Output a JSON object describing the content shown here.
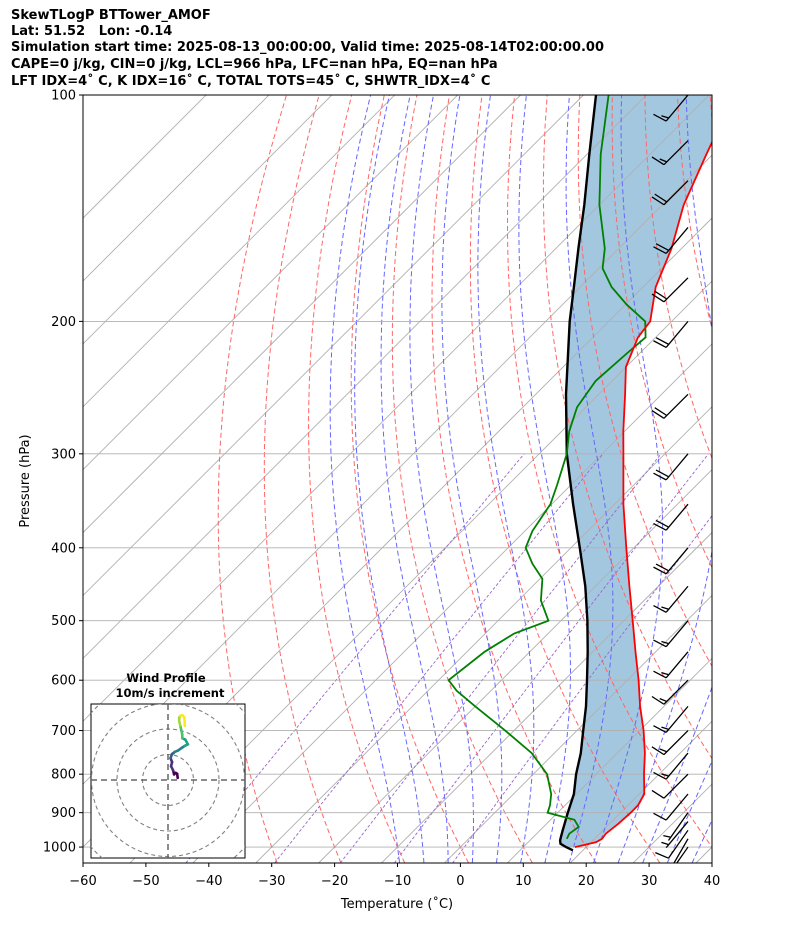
{
  "header": {
    "line1": "SkewTLogP BTTower_AMOF",
    "line2": "Lat: 51.52   Lon: -0.14",
    "line3": "Simulation start time: 2025-08-13_00:00:00, Valid time: 2025-08-14T02:00:00.00",
    "line4": "CAPE=0 j/kg, CIN=0 j/kg, LCL=966 hPa, LFC=nan hPa, EQ=nan hPa",
    "line5": "LFT IDX=4˚ C, K IDX=16˚ C, TOTAL TOTS=45˚ C, SHWTR_IDX=4˚ C"
  },
  "chart_data": {
    "type": "skewt",
    "xlabel": "Temperature (˚C)",
    "ylabel": "Pressure (hPa)",
    "xlim": [
      -60,
      40
    ],
    "ylim": [
      1050,
      100
    ],
    "x_ticks": [
      -60,
      -50,
      -40,
      -30,
      -20,
      -10,
      0,
      10,
      20,
      30,
      40
    ],
    "x_tick_labels": [
      "−60",
      "−50",
      "−40",
      "−30",
      "−20",
      "−10",
      "0",
      "10",
      "20",
      "30",
      "40"
    ],
    "y_ticks": [
      1000,
      900,
      800,
      700,
      600,
      500,
      400,
      300,
      200,
      100
    ],
    "y_tick_labels": [
      "1000",
      "900",
      "800",
      "700",
      "600",
      "500",
      "400",
      "300",
      "200",
      "100"
    ],
    "colors": {
      "temperature": "#ff0000",
      "dewpoint": "#008000",
      "parcel": "#000000",
      "cape_fill": "#a4c7e0",
      "dry_adiabat": "#ff6666",
      "moist_adiabat": "#6666ff",
      "mixing_ratio": "#9966cc",
      "isotherm": "#b0b0b0"
    },
    "temperature": {
      "p": [
        1000,
        985,
        975,
        960,
        930,
        900,
        880,
        850,
        800,
        750,
        700,
        650,
        600,
        550,
        500,
        450,
        400,
        350,
        300,
        280,
        250,
        230,
        210,
        200,
        180,
        160,
        140,
        120,
        110,
        100
      ],
      "t": [
        18.2,
        20.8,
        21.2,
        21.0,
        21.4,
        21.6,
        21.6,
        20.8,
        17.6,
        14.4,
        10.6,
        6.2,
        1.8,
        -3.2,
        -8.6,
        -14.6,
        -21.2,
        -28.6,
        -36.6,
        -40.2,
        -45.8,
        -50.0,
        -52.8,
        -53.4,
        -58.0,
        -61.6,
        -66.6,
        -71.0,
        -73.4,
        -75.2
      ]
    },
    "dewpoint": {
      "p": [
        975,
        960,
        940,
        920,
        900,
        880,
        850,
        800,
        750,
        700,
        650,
        620,
        600,
        550,
        520,
        500,
        470,
        440,
        420,
        400,
        380,
        350,
        330,
        300,
        280,
        260,
        240,
        220,
        210,
        200,
        190,
        180,
        170,
        160,
        140,
        120,
        100
      ],
      "t": [
        15.6,
        15.2,
        15.6,
        13.8,
        8.4,
        7.6,
        6.0,
        2.2,
        -3.6,
        -11.4,
        -20.0,
        -25.4,
        -28.4,
        -27.2,
        -25.4,
        -22.0,
        -26.4,
        -29.6,
        -33.6,
        -37.2,
        -38.8,
        -40.2,
        -42.2,
        -45.6,
        -48.8,
        -51.4,
        -52.6,
        -52.0,
        -51.6,
        -54.2,
        -59.8,
        -65.0,
        -69.4,
        -72.2,
        -80.0,
        -87.8,
        -96.0
      ]
    },
    "parcel": {
      "p": [
        1010,
        1000,
        990,
        980,
        970,
        950,
        900,
        850,
        800,
        750,
        700,
        650,
        600,
        550,
        500,
        450,
        400,
        350,
        300,
        250,
        200,
        180,
        160,
        140,
        120,
        100
      ],
      "t": [
        18.4,
        16.8,
        15.4,
        14.8,
        14.4,
        13.6,
        11.6,
        9.6,
        6.8,
        4.2,
        1.0,
        -2.4,
        -6.4,
        -10.8,
        -15.8,
        -21.6,
        -28.6,
        -36.6,
        -45.6,
        -55.2,
        -66.2,
        -71.0,
        -76.4,
        -82.4,
        -89.6,
        -98.0
      ]
    },
    "wind_barbs": {
      "units": "kt",
      "p": [
        1000,
        975,
        950,
        925,
        900,
        850,
        800,
        750,
        700,
        650,
        600,
        550,
        500,
        450,
        400,
        350,
        300,
        250,
        200,
        175,
        150,
        130,
        115,
        100
      ],
      "speed": [
        10,
        10,
        10,
        5,
        5,
        10,
        10,
        15,
        15,
        15,
        15,
        15,
        15,
        15,
        20,
        20,
        20,
        20,
        20,
        20,
        20,
        20,
        15,
        15
      ],
      "direction": [
        215,
        210,
        215,
        220,
        215,
        220,
        225,
        220,
        225,
        220,
        225,
        220,
        220,
        220,
        220,
        220,
        220,
        225,
        220,
        225,
        220,
        225,
        225,
        220
      ]
    },
    "hodograph": {
      "title": "Wind Profile",
      "subtitle": "10m/s increment",
      "colormap": "viridis",
      "u": [
        3.8,
        3.6,
        3.0,
        2.4,
        2.0,
        1.2,
        1.6,
        1.0,
        1.6,
        2.2,
        2.6,
        4.0,
        5.4,
        6.6,
        7.8,
        6.8,
        5.6,
        5.6,
        5.2,
        4.8,
        4.4,
        4.4,
        4.8,
        5.6,
        6.4,
        6.6
      ],
      "v": [
        0.8,
        2.4,
        2.8,
        2.2,
        3.8,
        5.4,
        7.0,
        8.6,
        10.2,
        10.6,
        11.0,
        11.6,
        12.6,
        13.4,
        14.0,
        15.8,
        16.4,
        17.8,
        19.6,
        21.4,
        23.0,
        24.4,
        25.2,
        25.4,
        24.6,
        21.2
      ]
    }
  }
}
